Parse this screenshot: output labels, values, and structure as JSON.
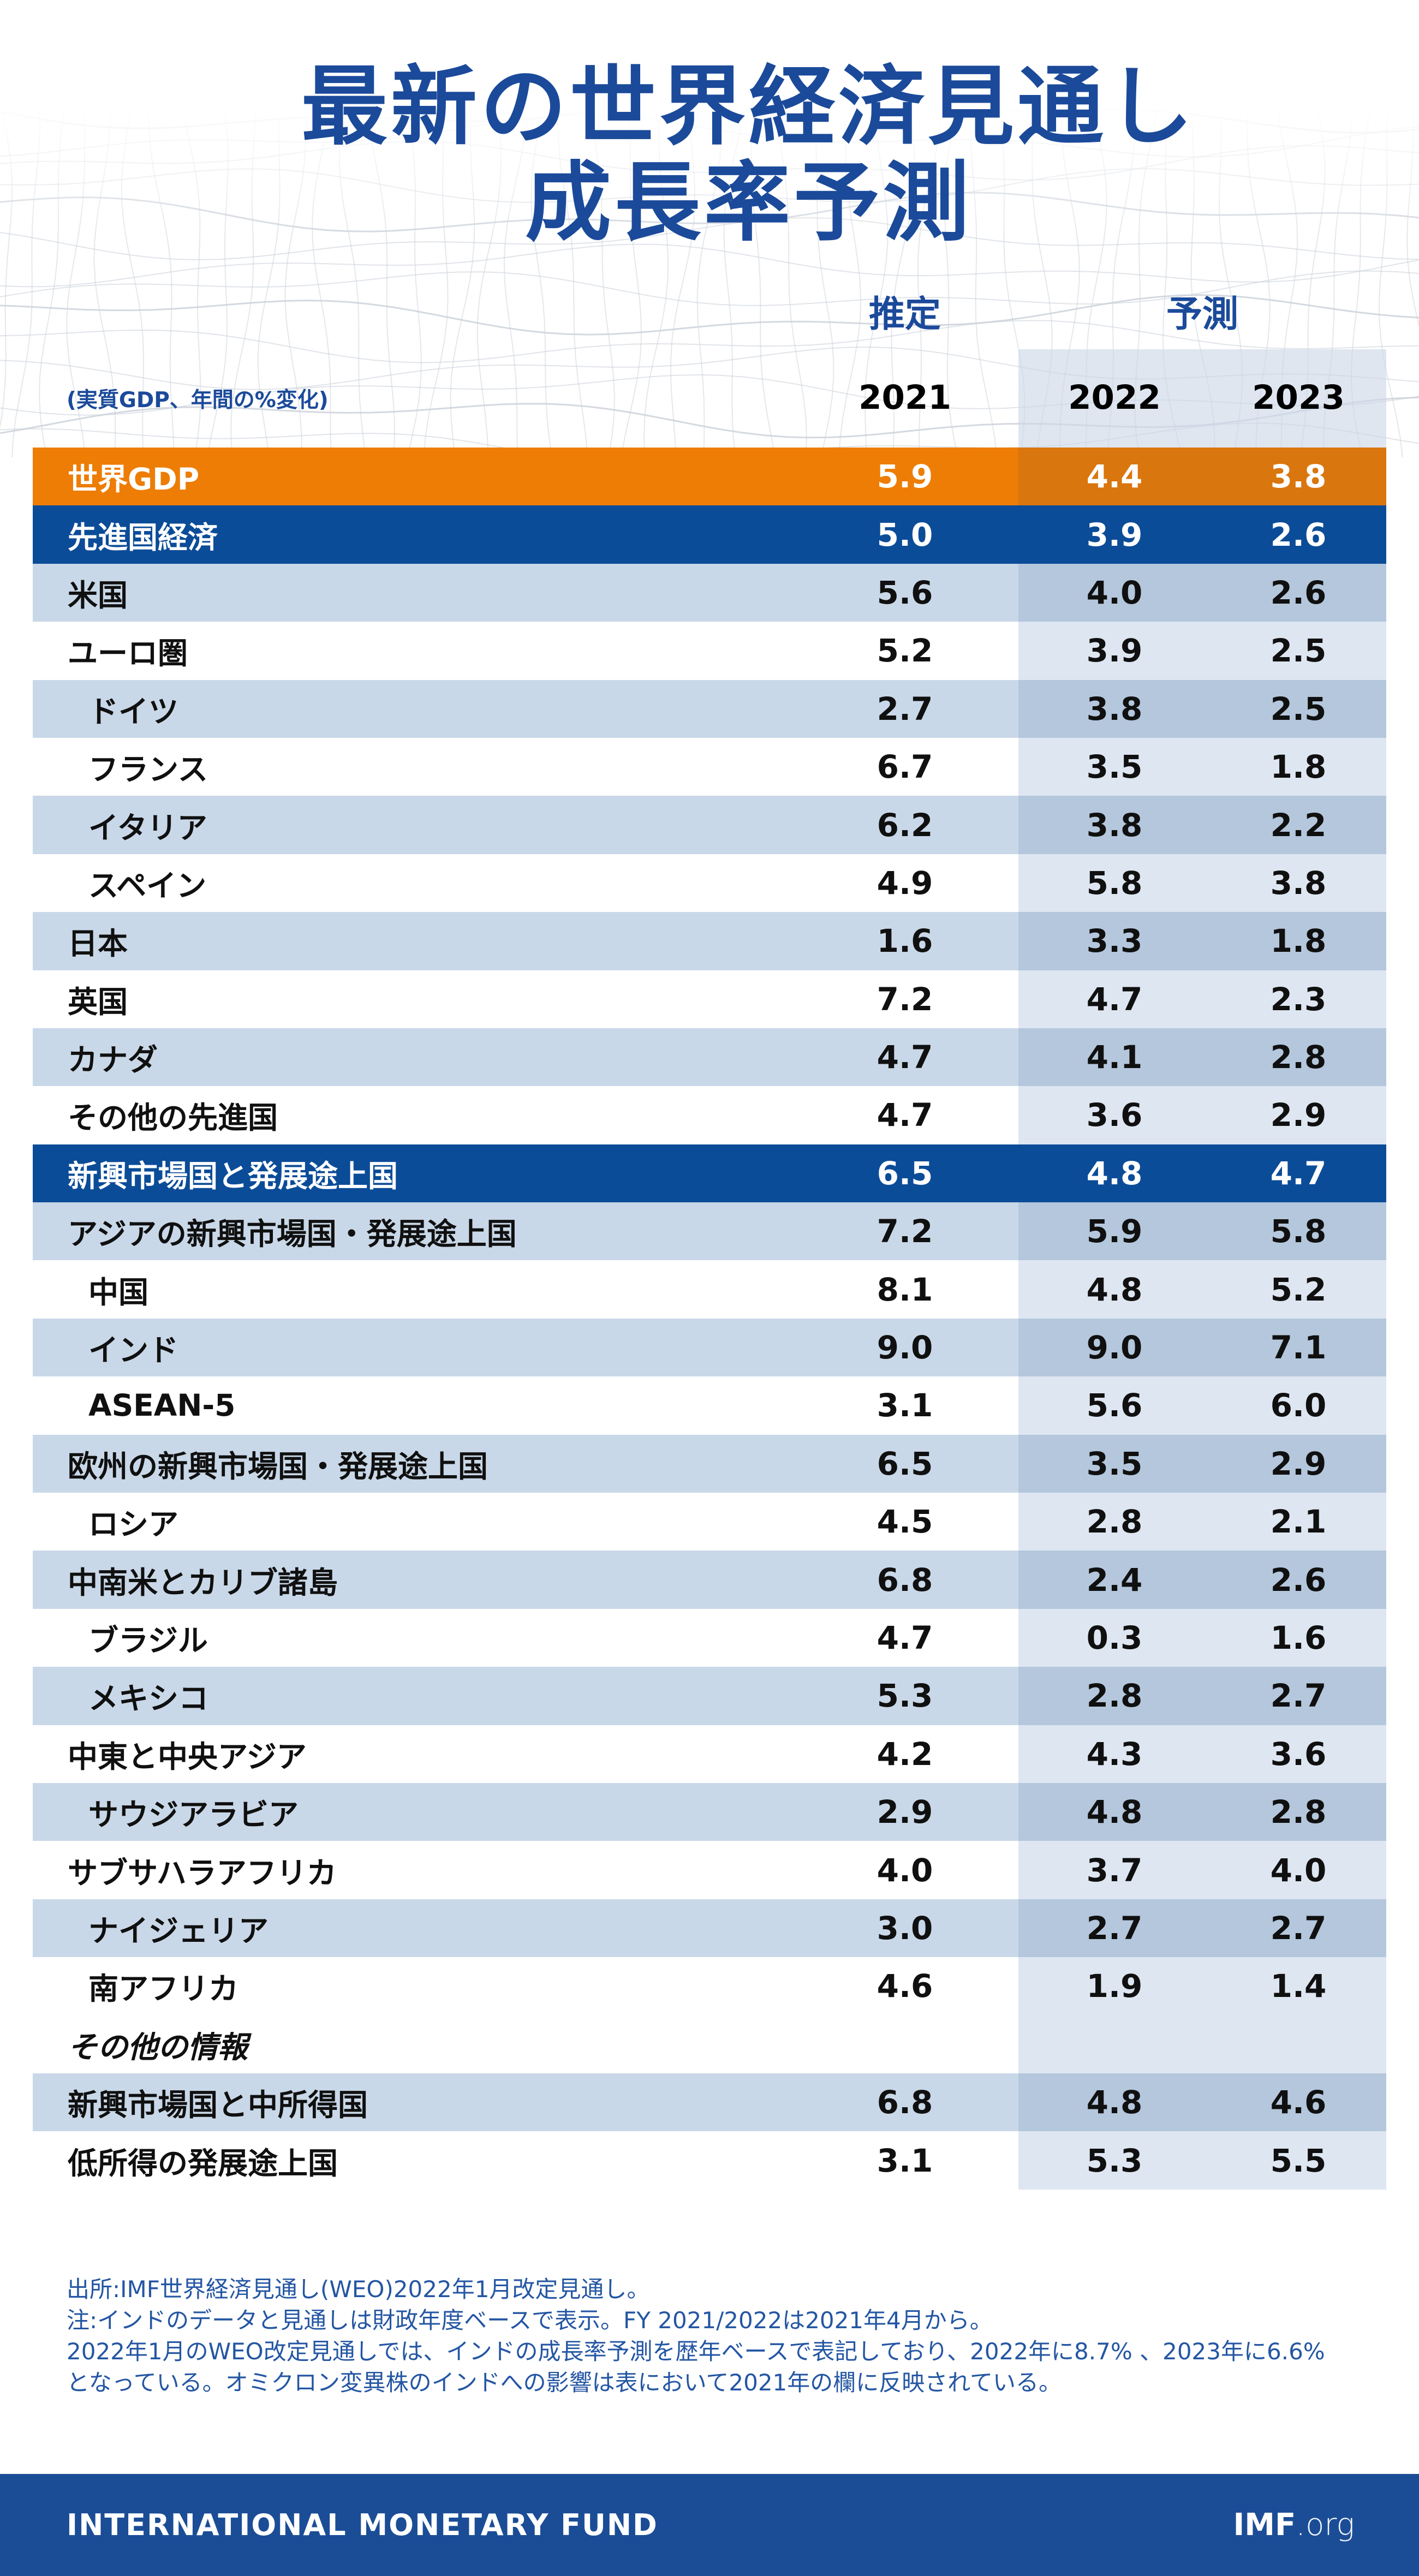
{
  "title": {
    "line1": "最新の世界経済見通し",
    "line2": "成長率予測"
  },
  "header": {
    "estimate_label": "推定",
    "forecast_label": "予測",
    "unit_note": "(実質GDP、年間の%変化)",
    "years": [
      "2021",
      "2022",
      "2023"
    ]
  },
  "table": {
    "rows": [
      {
        "label": "世界GDP",
        "style": "orange",
        "indent": 0,
        "values": [
          "5.9",
          "4.4",
          "3.8"
        ]
      },
      {
        "label": "先進国経済",
        "style": "navy",
        "indent": 0,
        "values": [
          "5.0",
          "3.9",
          "2.6"
        ]
      },
      {
        "label": "米国",
        "style": "alt",
        "indent": 0,
        "values": [
          "5.6",
          "4.0",
          "2.6"
        ]
      },
      {
        "label": "ユーロ圏",
        "style": "white",
        "indent": 0,
        "values": [
          "5.2",
          "3.9",
          "2.5"
        ]
      },
      {
        "label": "ドイツ",
        "style": "alt",
        "indent": 1,
        "values": [
          "2.7",
          "3.8",
          "2.5"
        ]
      },
      {
        "label": "フランス",
        "style": "white",
        "indent": 1,
        "values": [
          "6.7",
          "3.5",
          "1.8"
        ]
      },
      {
        "label": "イタリア",
        "style": "alt",
        "indent": 1,
        "values": [
          "6.2",
          "3.8",
          "2.2"
        ]
      },
      {
        "label": "スペイン",
        "style": "white",
        "indent": 1,
        "values": [
          "4.9",
          "5.8",
          "3.8"
        ]
      },
      {
        "label": "日本",
        "style": "alt",
        "indent": 0,
        "values": [
          "1.6",
          "3.3",
          "1.8"
        ]
      },
      {
        "label": "英国",
        "style": "white",
        "indent": 0,
        "values": [
          "7.2",
          "4.7",
          "2.3"
        ]
      },
      {
        "label": "カナダ",
        "style": "alt",
        "indent": 0,
        "values": [
          "4.7",
          "4.1",
          "2.8"
        ]
      },
      {
        "label": "その他の先進国",
        "style": "white",
        "indent": 0,
        "values": [
          "4.7",
          "3.6",
          "2.9"
        ]
      },
      {
        "label": "新興市場国と発展途上国",
        "style": "navy",
        "indent": 0,
        "values": [
          "6.5",
          "4.8",
          "4.7"
        ]
      },
      {
        "label": "アジアの新興市場国・発展途上国",
        "style": "alt",
        "indent": 0,
        "values": [
          "7.2",
          "5.9",
          "5.8"
        ]
      },
      {
        "label": "中国",
        "style": "white",
        "indent": 1,
        "values": [
          "8.1",
          "4.8",
          "5.2"
        ]
      },
      {
        "label": "インド",
        "style": "alt",
        "indent": 1,
        "values": [
          "9.0",
          "9.0",
          "7.1"
        ]
      },
      {
        "label": "ASEAN-5",
        "style": "white",
        "indent": 1,
        "values": [
          "3.1",
          "5.6",
          "6.0"
        ]
      },
      {
        "label": "欧州の新興市場国・発展途上国",
        "style": "alt",
        "indent": 0,
        "values": [
          "6.5",
          "3.5",
          "2.9"
        ]
      },
      {
        "label": "ロシア",
        "style": "white",
        "indent": 1,
        "values": [
          "4.5",
          "2.8",
          "2.1"
        ]
      },
      {
        "label": "中南米とカリブ諸島",
        "style": "alt",
        "indent": 0,
        "values": [
          "6.8",
          "2.4",
          "2.6"
        ]
      },
      {
        "label": "ブラジル",
        "style": "white",
        "indent": 1,
        "values": [
          "4.7",
          "0.3",
          "1.6"
        ]
      },
      {
        "label": "メキシコ",
        "style": "alt",
        "indent": 1,
        "values": [
          "5.3",
          "2.8",
          "2.7"
        ]
      },
      {
        "label": "中東と中央アジア",
        "style": "white",
        "indent": 0,
        "values": [
          "4.2",
          "4.3",
          "3.6"
        ]
      },
      {
        "label": "サウジアラビア",
        "style": "alt",
        "indent": 1,
        "values": [
          "2.9",
          "4.8",
          "2.8"
        ]
      },
      {
        "label": "サブサハラアフリカ",
        "style": "white",
        "indent": 0,
        "values": [
          "4.0",
          "3.7",
          "4.0"
        ]
      },
      {
        "label": "ナイジェリア",
        "style": "alt",
        "indent": 1,
        "values": [
          "3.0",
          "2.7",
          "2.7"
        ]
      },
      {
        "label": "南アフリカ",
        "style": "white",
        "indent": 1,
        "values": [
          "4.6",
          "1.9",
          "1.4"
        ]
      },
      {
        "label": "その他の情報",
        "style": "memo",
        "indent": 0,
        "values": [
          "",
          "",
          ""
        ]
      },
      {
        "label": "新興市場国と中所得国",
        "style": "alt",
        "indent": 0,
        "values": [
          "6.8",
          "4.8",
          "4.6"
        ]
      },
      {
        "label": "低所得の発展途上国",
        "style": "white",
        "indent": 0,
        "values": [
          "3.1",
          "5.3",
          "5.5"
        ]
      }
    ]
  },
  "notes": {
    "lines": [
      "出所:IMF世界経済見通し(WEO)2022年1月改定見通し。",
      "注:インドのデータと見通しは財政年度ベースで表示。FY 2021/2022は2021年4月から。",
      "2022年1月のWEO改定見通しでは、インドの成長率予測を歴年ベースで表記しており、2022年に8.7% 、2023年に6.6%",
      "となっている。オミクロン変異株のインドへの影響は表において2021年の欄に反映されている。"
    ]
  },
  "footer": {
    "org": "INTERNATIONAL MONETARY FUND",
    "site_bold": "IMF",
    "site_suffix": ".org"
  },
  "colors": {
    "title_blue": "#1B4A9A",
    "accent_orange": "#ED7D05",
    "orange_forecast": "#D9760E",
    "navy": "#0B4C98",
    "row_alt": "#C9D8E8",
    "row_alt_forecast": "#B4C7DC",
    "row_white_forecast": "#DEE6F1",
    "note_blue": "#2456A3",
    "footer_bar": "#1B4D96",
    "mesh_gray": "#CCD2DA"
  },
  "chart_data": {
    "type": "table",
    "title": "最新の世界経済見通し 成長率予測",
    "unit": "実質GDP、年間の%変化",
    "columns": [
      "2021 (推定)",
      "2022 (予測)",
      "2023 (予測)"
    ],
    "rows": [
      {
        "name": "世界GDP",
        "values": [
          5.9,
          4.4,
          3.8
        ]
      },
      {
        "name": "先進国経済",
        "values": [
          5.0,
          3.9,
          2.6
        ]
      },
      {
        "name": "米国",
        "values": [
          5.6,
          4.0,
          2.6
        ]
      },
      {
        "name": "ユーロ圏",
        "values": [
          5.2,
          3.9,
          2.5
        ]
      },
      {
        "name": "ドイツ",
        "values": [
          2.7,
          3.8,
          2.5
        ]
      },
      {
        "name": "フランス",
        "values": [
          6.7,
          3.5,
          1.8
        ]
      },
      {
        "name": "イタリア",
        "values": [
          6.2,
          3.8,
          2.2
        ]
      },
      {
        "name": "スペイン",
        "values": [
          4.9,
          5.8,
          3.8
        ]
      },
      {
        "name": "日本",
        "values": [
          1.6,
          3.3,
          1.8
        ]
      },
      {
        "name": "英国",
        "values": [
          7.2,
          4.7,
          2.3
        ]
      },
      {
        "name": "カナダ",
        "values": [
          4.7,
          4.1,
          2.8
        ]
      },
      {
        "name": "その他の先進国",
        "values": [
          4.7,
          3.6,
          2.9
        ]
      },
      {
        "name": "新興市場国と発展途上国",
        "values": [
          6.5,
          4.8,
          4.7
        ]
      },
      {
        "name": "アジアの新興市場国・発展途上国",
        "values": [
          7.2,
          5.9,
          5.8
        ]
      },
      {
        "name": "中国",
        "values": [
          8.1,
          4.8,
          5.2
        ]
      },
      {
        "name": "インド",
        "values": [
          9.0,
          9.0,
          7.1
        ]
      },
      {
        "name": "ASEAN-5",
        "values": [
          3.1,
          5.6,
          6.0
        ]
      },
      {
        "name": "欧州の新興市場国・発展途上国",
        "values": [
          6.5,
          3.5,
          2.9
        ]
      },
      {
        "name": "ロシア",
        "values": [
          4.5,
          2.8,
          2.1
        ]
      },
      {
        "name": "中南米とカリブ諸島",
        "values": [
          6.8,
          2.4,
          2.6
        ]
      },
      {
        "name": "ブラジル",
        "values": [
          4.7,
          0.3,
          1.6
        ]
      },
      {
        "name": "メキシコ",
        "values": [
          5.3,
          2.8,
          2.7
        ]
      },
      {
        "name": "中東と中央アジア",
        "values": [
          4.2,
          4.3,
          3.6
        ]
      },
      {
        "name": "サウジアラビア",
        "values": [
          2.9,
          4.8,
          2.8
        ]
      },
      {
        "name": "サブサハラアフリカ",
        "values": [
          4.0,
          3.7,
          4.0
        ]
      },
      {
        "name": "ナイジェリア",
        "values": [
          3.0,
          2.7,
          2.7
        ]
      },
      {
        "name": "南アフリカ",
        "values": [
          4.6,
          1.9,
          1.4
        ]
      },
      {
        "name": "新興市場国と中所得国",
        "values": [
          6.8,
          4.8,
          4.6
        ]
      },
      {
        "name": "低所得の発展途上国",
        "values": [
          3.1,
          5.3,
          5.5
        ]
      }
    ]
  }
}
